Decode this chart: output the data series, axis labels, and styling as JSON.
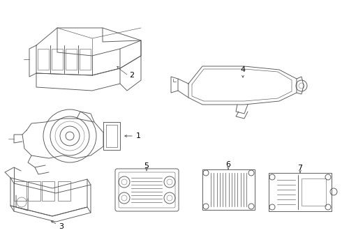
{
  "background_color": "#ffffff",
  "line_color": "#555555",
  "label_color": "#000000",
  "figsize": [
    4.9,
    3.6
  ],
  "dpi": 100,
  "font_size": 8,
  "lw": 0.65
}
